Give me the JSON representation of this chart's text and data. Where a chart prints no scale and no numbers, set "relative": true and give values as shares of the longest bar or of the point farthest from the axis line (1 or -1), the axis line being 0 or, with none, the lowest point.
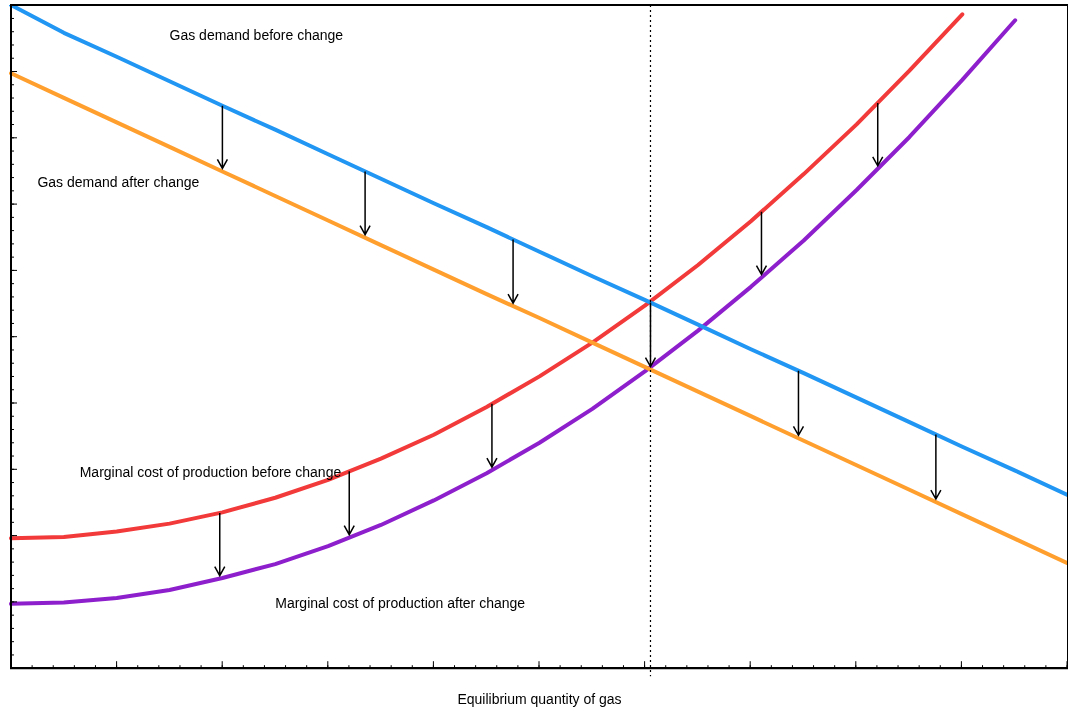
{
  "chart_data": {
    "type": "line",
    "relative": true,
    "xlabel": "Equilibrium quantity of gas",
    "categories": [
      null,
      null,
      null,
      null,
      null,
      null,
      null,
      null,
      null,
      null,
      null,
      null,
      null,
      null,
      null,
      null,
      null,
      null,
      null,
      null,
      null
    ],
    "tick_labels": false,
    "marker": "none",
    "line_style": "solid",
    "series": [
      {
        "name": "Gas demand before change",
        "color": "#2196f3",
        "values": [
          1.0,
          0.958,
          0.922,
          0.885,
          0.848,
          0.812,
          0.775,
          0.738,
          0.701,
          0.665,
          0.628,
          0.591,
          0.555,
          0.518,
          0.481,
          0.445,
          0.408,
          0.371,
          0.334,
          0.298,
          0.261
        ]
      },
      {
        "name": "Gas demand after change",
        "color": "#ff9f2e",
        "values": [
          0.897,
          0.86,
          0.823,
          0.786,
          0.749,
          0.712,
          0.675,
          0.638,
          0.601,
          0.564,
          0.528,
          0.491,
          0.454,
          0.417,
          0.38,
          0.343,
          0.306,
          0.269,
          0.232,
          0.195,
          0.158
        ]
      },
      {
        "name": "Marginal cost of production before change",
        "color": "#f23a3a",
        "values": [
          0.196,
          0.198,
          0.206,
          0.218,
          0.235,
          0.257,
          0.284,
          0.316,
          0.352,
          0.394,
          0.44,
          0.491,
          0.547,
          0.608,
          0.674,
          0.745,
          0.82,
          0.901,
          0.986,
          null,
          null
        ]
      },
      {
        "name": "Marginal cost of production after change",
        "color": "#8e1fcc",
        "values": [
          0.097,
          0.099,
          0.106,
          0.118,
          0.136,
          0.157,
          0.184,
          0.216,
          0.253,
          0.294,
          0.34,
          0.391,
          0.448,
          0.509,
          0.575,
          0.645,
          0.721,
          0.801,
          0.887,
          0.977,
          null
        ]
      }
    ]
  }
}
